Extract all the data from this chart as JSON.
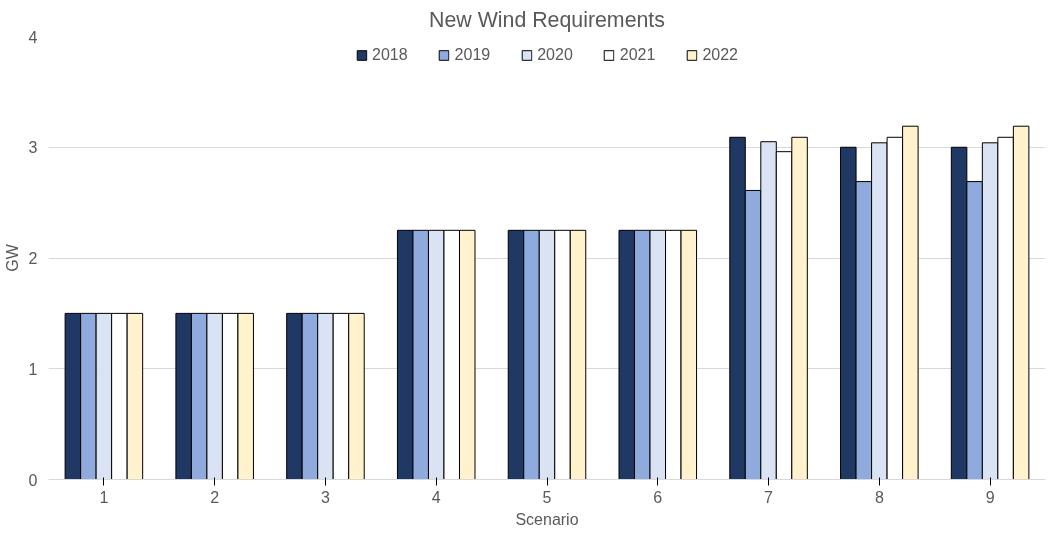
{
  "chart_data": {
    "type": "bar",
    "title": "New Wind Requirements",
    "xlabel": "Scenario",
    "ylabel": "GW",
    "categories": [
      "1",
      "2",
      "3",
      "4",
      "5",
      "6",
      "7",
      "8",
      "9"
    ],
    "series": [
      {
        "name": "2018",
        "color": "#203864",
        "values": [
          1.5,
          1.5,
          1.5,
          2.25,
          2.25,
          2.25,
          3.09,
          3.0,
          3.0
        ]
      },
      {
        "name": "2019",
        "color": "#8faadc",
        "values": [
          1.5,
          1.5,
          1.5,
          2.25,
          2.25,
          2.25,
          2.61,
          2.69,
          2.69
        ]
      },
      {
        "name": "2020",
        "color": "#dae3f3",
        "values": [
          1.5,
          1.5,
          1.5,
          2.25,
          2.25,
          2.25,
          3.05,
          3.04,
          3.04
        ]
      },
      {
        "name": "2021",
        "color": "#ffffff",
        "values": [
          1.5,
          1.5,
          1.5,
          2.25,
          2.25,
          2.25,
          2.96,
          3.09,
          3.09
        ]
      },
      {
        "name": "2022",
        "color": "#fff2cc",
        "values": [
          1.5,
          1.5,
          1.5,
          2.25,
          2.25,
          2.25,
          3.09,
          3.19,
          3.19
        ]
      }
    ],
    "ylim": [
      0,
      4
    ],
    "yticks": [
      0,
      1,
      2,
      3,
      4
    ],
    "grid": "y",
    "legend": "top"
  }
}
